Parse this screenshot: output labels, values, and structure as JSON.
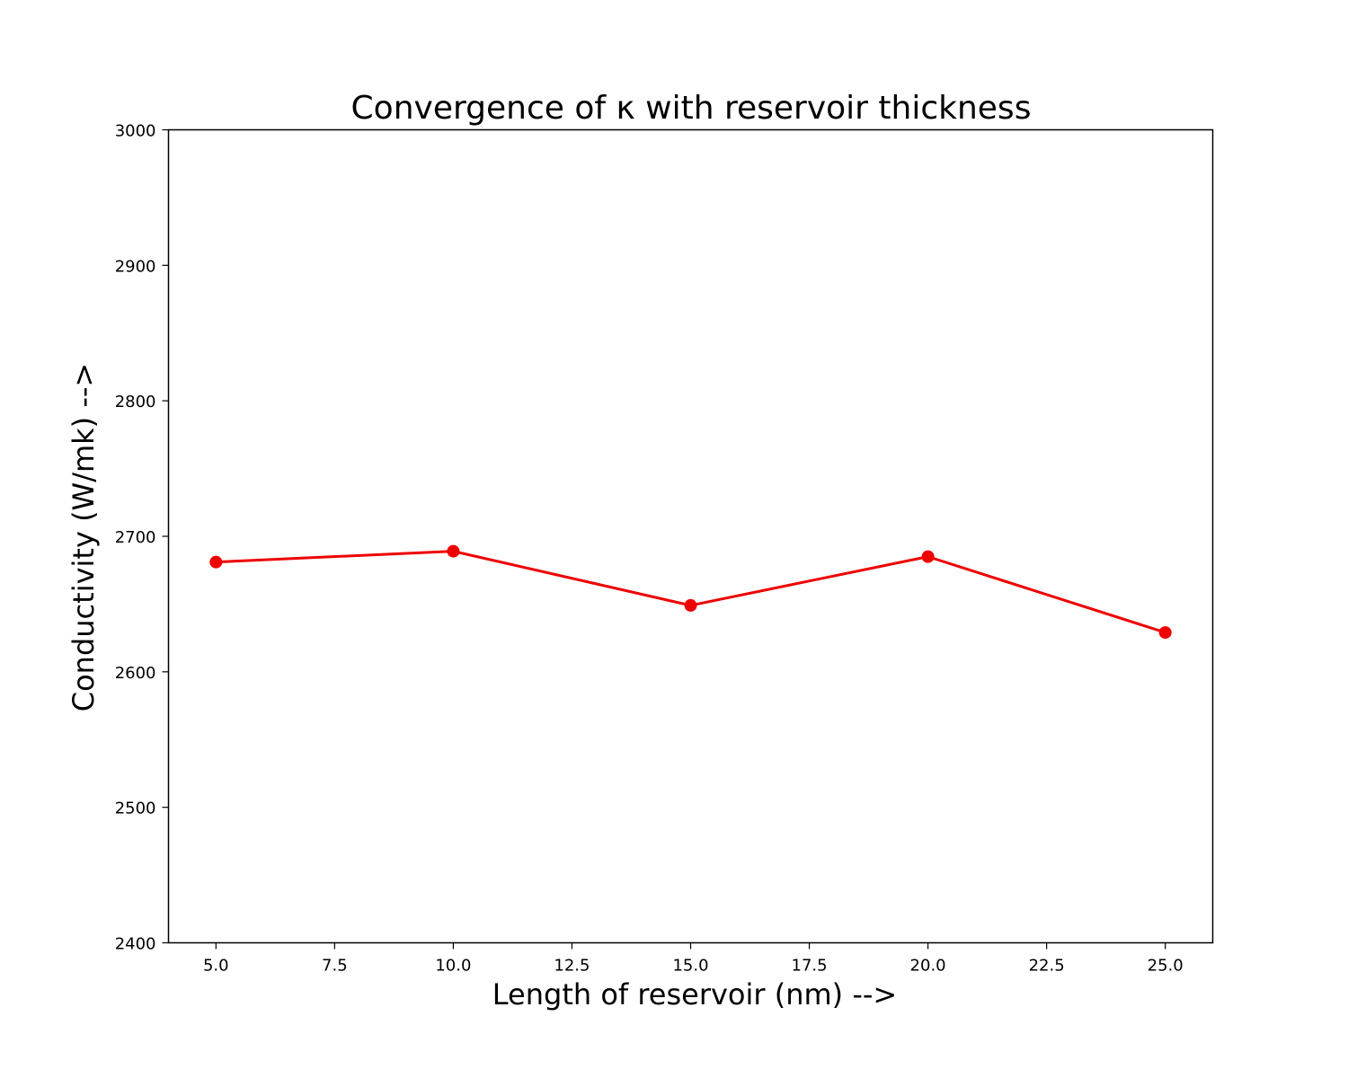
{
  "chart_data": {
    "type": "line",
    "title": "Convergence of κ with reservoir thickness",
    "xlabel": "Length of reservoir (nm) -->",
    "ylabel": "Conductivity (W/mk) -->",
    "xlim": [
      4.0,
      26.0
    ],
    "ylim": [
      2400,
      3000
    ],
    "xticks": [
      5.0,
      7.5,
      10.0,
      12.5,
      15.0,
      17.5,
      20.0,
      22.5,
      25.0
    ],
    "xtick_labels": [
      "5.0",
      "7.5",
      "10.0",
      "12.5",
      "15.0",
      "17.5",
      "20.0",
      "22.5",
      "25.0"
    ],
    "yticks": [
      2400,
      2500,
      2600,
      2700,
      2800,
      2900,
      3000
    ],
    "ytick_labels": [
      "2400",
      "2500",
      "2600",
      "2700",
      "2800",
      "2900",
      "3000"
    ],
    "grid": false,
    "series": [
      {
        "color": "#ee0000",
        "marker": "circle",
        "x": [
          5.0,
          10.0,
          15.0,
          20.0,
          25.0
        ],
        "y": [
          2681,
          2689,
          2649,
          2685,
          2629
        ]
      }
    ]
  }
}
